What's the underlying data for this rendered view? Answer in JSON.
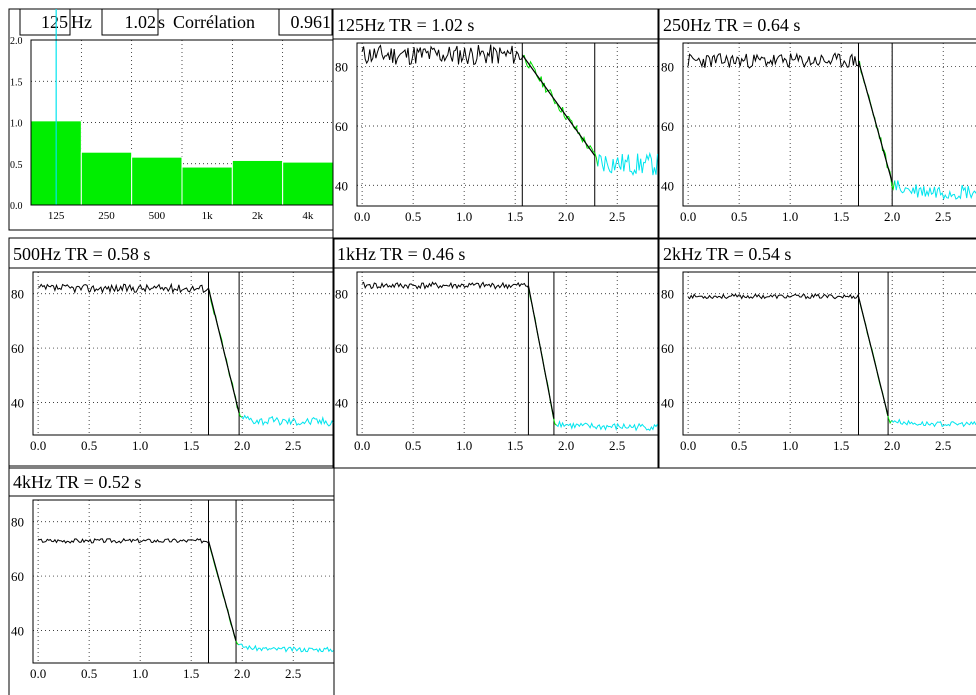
{
  "colors": {
    "measured": "#000000",
    "fit_region": "#00dd00",
    "noise_floor": "#00e5ee",
    "bar": "#00ee00",
    "grid": "#000000"
  },
  "header": {
    "freq_value": "125",
    "freq_unit": "Hz",
    "tr_value": "1.02",
    "tr_unit": "s",
    "corr_label": "Corrélation",
    "corr_value": "0.961"
  },
  "chart_data": [
    {
      "type": "bar",
      "categories": [
        "125",
        "250",
        "500",
        "1k",
        "2k",
        "4k"
      ],
      "values": [
        1.02,
        0.64,
        0.58,
        0.46,
        0.54,
        0.52
      ],
      "selected": "125",
      "ylim": [
        0,
        2.0
      ],
      "yticks": [
        "0.0",
        "0.5",
        "1.0",
        "1.5",
        "2.0"
      ],
      "grid": true
    },
    {
      "type": "line",
      "title": "125Hz  TR = 1.02 s",
      "base": 84,
      "floor": 47,
      "t0": 1.57,
      "t1": 2.28,
      "noise": 3.5,
      "seed": 11,
      "xlim": [
        -0.05,
        2.9
      ],
      "ylim": [
        33,
        88
      ],
      "xticks": [
        "0.0",
        "0.5",
        "1.0",
        "1.5",
        "2.0",
        "2.5"
      ],
      "yticks": [
        "40",
        "60",
        "80"
      ],
      "grid": true
    },
    {
      "type": "line",
      "title": "250Hz  TR = 0.64 s",
      "base": 82,
      "floor": 38,
      "t0": 1.67,
      "t1": 2.0,
      "noise": 2.5,
      "seed": 23,
      "xlim": [
        -0.05,
        2.9
      ],
      "ylim": [
        33,
        88
      ],
      "xticks": [
        "0.0",
        "0.5",
        "1.0",
        "1.5",
        "2.0",
        "2.5"
      ],
      "yticks": [
        "40",
        "60",
        "80"
      ],
      "grid": true
    },
    {
      "type": "line",
      "title": "500Hz  TR = 0.58 s",
      "base": 82,
      "floor": 33,
      "t0": 1.67,
      "t1": 1.97,
      "noise": 1.5,
      "seed": 37,
      "xlim": [
        -0.05,
        2.9
      ],
      "ylim": [
        28,
        88
      ],
      "xticks": [
        "0.0",
        "0.5",
        "1.0",
        "1.5",
        "2.0",
        "2.5"
      ],
      "yticks": [
        "40",
        "60",
        "80"
      ],
      "grid": true
    },
    {
      "type": "line",
      "title": "1kHz  TR = 0.46 s",
      "base": 83,
      "floor": 31,
      "t0": 1.63,
      "t1": 1.88,
      "noise": 1.2,
      "seed": 41,
      "xlim": [
        -0.05,
        2.9
      ],
      "ylim": [
        28,
        88
      ],
      "xticks": [
        "0.0",
        "0.5",
        "1.0",
        "1.5",
        "2.0",
        "2.5"
      ],
      "yticks": [
        "40",
        "60",
        "80"
      ],
      "grid": true
    },
    {
      "type": "line",
      "title": "2kHz  TR = 0.54 s",
      "base": 79,
      "floor": 32,
      "t0": 1.67,
      "t1": 1.96,
      "noise": 0.8,
      "seed": 53,
      "xlim": [
        -0.05,
        2.9
      ],
      "ylim": [
        28,
        88
      ],
      "xticks": [
        "0.0",
        "0.5",
        "1.0",
        "1.5",
        "2.0",
        "2.5"
      ],
      "yticks": [
        "40",
        "60",
        "80"
      ],
      "grid": true
    },
    {
      "type": "line",
      "title": "4kHz  TR = 0.52 s",
      "base": 73,
      "floor": 33,
      "t0": 1.67,
      "t1": 1.94,
      "noise": 0.8,
      "seed": 67,
      "xlim": [
        -0.05,
        2.9
      ],
      "ylim": [
        28,
        88
      ],
      "xticks": [
        "0.0",
        "0.5",
        "1.0",
        "1.5",
        "2.0",
        "2.5"
      ],
      "yticks": [
        "40",
        "60",
        "80"
      ],
      "grid": true
    }
  ]
}
